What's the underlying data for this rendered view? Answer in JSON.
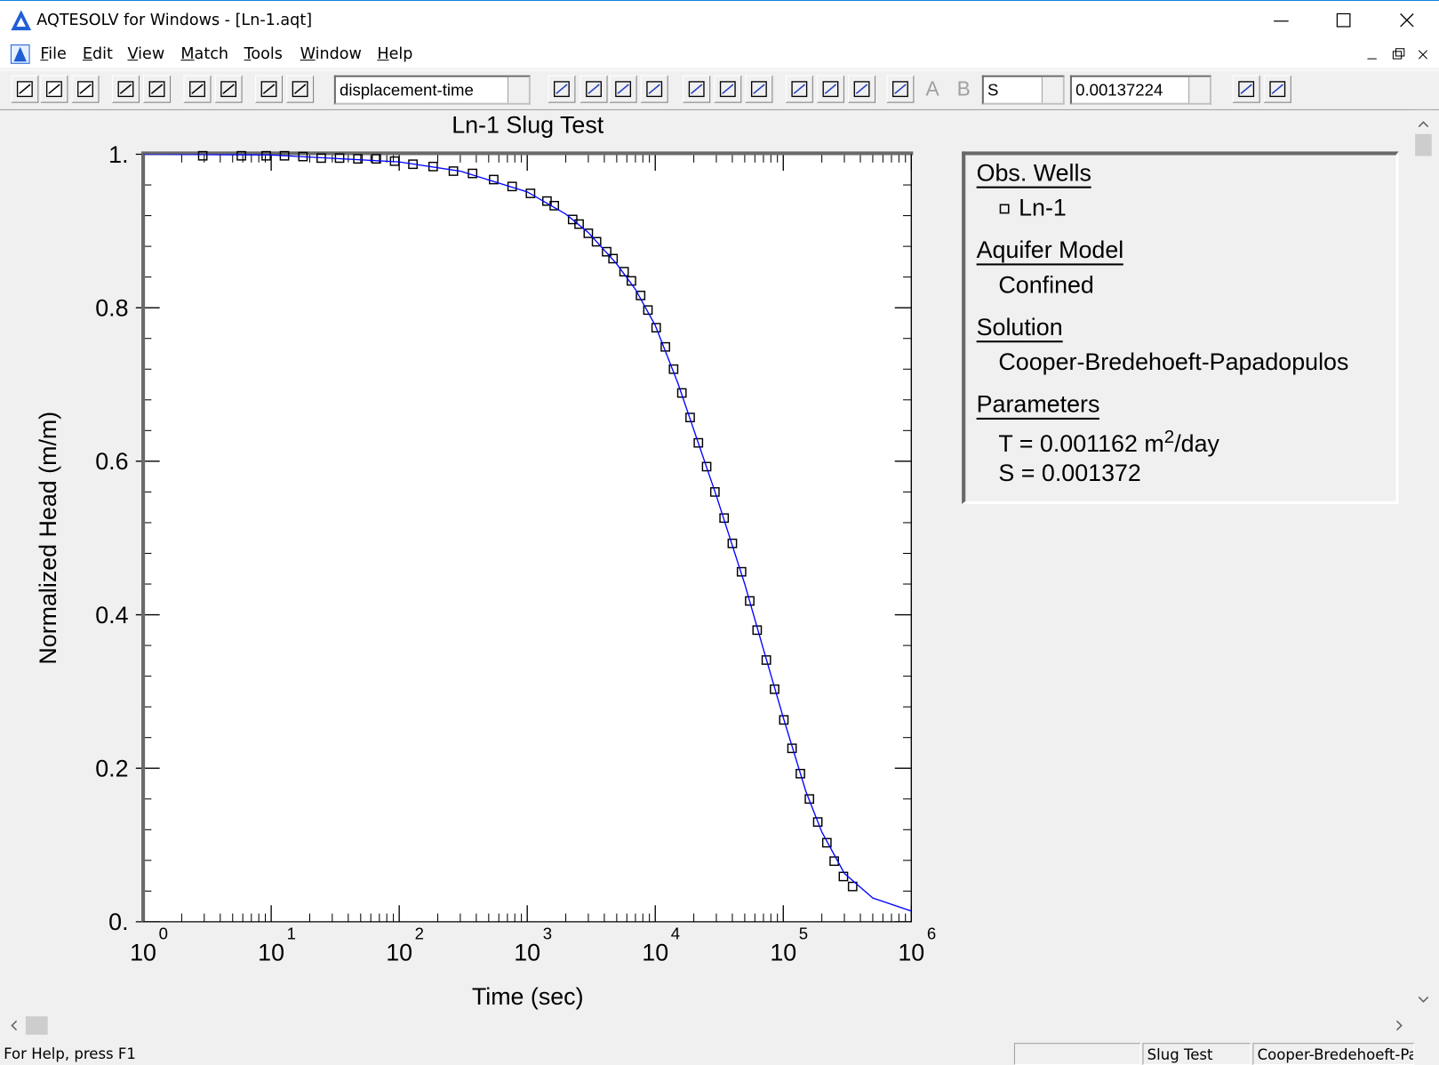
{
  "window": {
    "title": "AQTESOLV for Windows - [Ln-1.aqt]"
  },
  "menu": [
    "File",
    "Edit",
    "View",
    "Match",
    "Tools",
    "Window",
    "Help"
  ],
  "toolbar": {
    "plot_type": "displacement-time",
    "letters": [
      "A",
      "B"
    ],
    "parameter": "S",
    "parameter_value": "0.00137224"
  },
  "chart_data": {
    "type": "scatter",
    "title": "Ln-1 Slug Test",
    "x_label": "Time (sec)",
    "y_label": "Normalized Head (m/m)",
    "xscale": "log",
    "xlim": [
      1,
      1000000
    ],
    "ylim": [
      0,
      1
    ],
    "xticks": [
      {
        "value": 1,
        "label": "10",
        "sup": "0"
      },
      {
        "value": 10,
        "label": "10",
        "sup": "1"
      },
      {
        "value": 100,
        "label": "10",
        "sup": "2"
      },
      {
        "value": 1000,
        "label": "10",
        "sup": "3"
      },
      {
        "value": 10000,
        "label": "10",
        "sup": "4"
      },
      {
        "value": 100000,
        "label": "10",
        "sup": "5"
      },
      {
        "value": 1000000,
        "label": "10",
        "sup": "6"
      }
    ],
    "yticks": [
      {
        "value": 0,
        "label": "0."
      },
      0.2,
      0.4,
      0.6,
      0.8,
      {
        "value": 1,
        "label": "1."
      }
    ],
    "series": [
      {
        "name": "Ln-1",
        "mark": "square",
        "color": "#000000",
        "x": [
          2.92,
          5.85,
          9.14,
          12.7,
          17.7,
          24.6,
          34.2,
          47.6,
          66.2,
          92.1,
          128,
          184,
          265,
          374,
          547,
          762,
          1060,
          1426,
          1627,
          2264,
          2541,
          2999,
          3478,
          4170,
          4680,
          5705,
          6513,
          7681,
          8765,
          10160,
          11990,
          13900,
          16140,
          18720,
          21720,
          25190,
          29230,
          34500,
          40000,
          47200,
          54700,
          62500,
          73700,
          85500,
          101000,
          117000,
          136000,
          160000,
          186000,
          219000,
          250000,
          295000,
          348000
        ],
        "values": [
          0.998,
          0.998,
          0.998,
          0.998,
          0.997,
          0.995,
          0.995,
          0.994,
          0.994,
          0.991,
          0.987,
          0.984,
          0.978,
          0.975,
          0.967,
          0.958,
          0.949,
          0.939,
          0.933,
          0.915,
          0.909,
          0.897,
          0.886,
          0.873,
          0.864,
          0.847,
          0.835,
          0.816,
          0.797,
          0.774,
          0.749,
          0.72,
          0.689,
          0.657,
          0.624,
          0.593,
          0.56,
          0.526,
          0.493,
          0.456,
          0.418,
          0.38,
          0.341,
          0.303,
          0.263,
          0.226,
          0.193,
          0.16,
          0.13,
          0.103,
          0.079,
          0.059,
          0.046
        ]
      },
      {
        "mark": "line",
        "color": "#0000ff",
        "x": [
          1,
          10,
          100,
          300,
          1000,
          2000,
          3000,
          5000,
          7000,
          10000,
          15000,
          20000,
          30000,
          50000,
          70000,
          100000,
          150000,
          200000,
          300000,
          500000,
          1000000
        ],
        "values": [
          1,
          0.999,
          0.99,
          0.978,
          0.951,
          0.922,
          0.898,
          0.857,
          0.824,
          0.777,
          0.702,
          0.641,
          0.555,
          0.44,
          0.355,
          0.266,
          0.17,
          0.117,
          0.063,
          0.031,
          0.014
        ]
      }
    ],
    "legend_panel": {
      "sections": [
        {
          "heading": "Obs. Wells"
        },
        {
          "heading": "Aquifer Model",
          "items": [
            "Confined"
          ]
        },
        {
          "heading": "Solution",
          "items": [
            "Cooper-Bredehoeft-Papadopulos"
          ]
        },
        {
          "heading": "Parameters",
          "items": [
            {
              "text": "T = 0.001162 m",
              "sup": "2",
              "suffix": "/day"
            },
            "S = 0.001372"
          ]
        }
      ]
    }
  },
  "status_bar": [
    "For Help, press F1",
    "Slug Test",
    "Cooper-Bredehoeft-Pa"
  ]
}
